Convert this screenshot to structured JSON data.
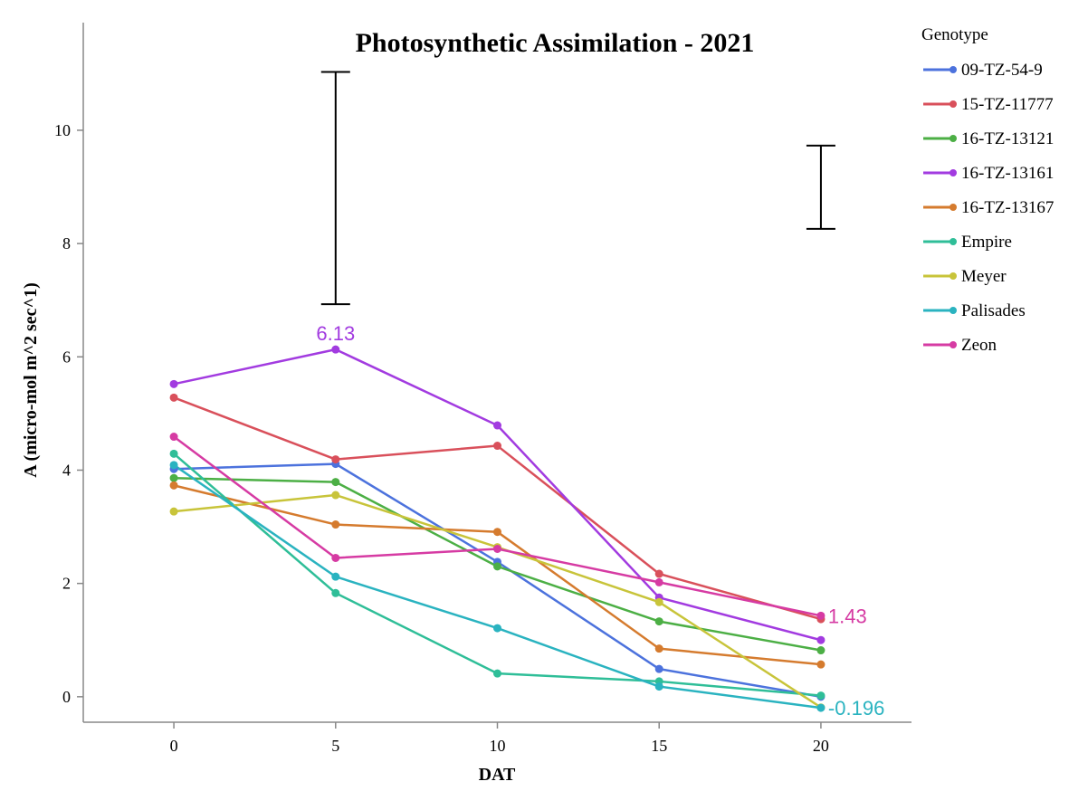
{
  "chart_data": {
    "type": "line",
    "title": "Photosynthetic Assimilation - 2021",
    "xlabel": "DAT",
    "ylabel": "A (micro-mol m^2 sec^1)",
    "x": [
      0,
      5,
      10,
      15,
      20
    ],
    "x_ticks": [
      "0",
      "5",
      "10",
      "15",
      "20"
    ],
    "y_ticks": [
      "0",
      "2",
      "4",
      "6",
      "8",
      "10"
    ],
    "xlim": [
      -2.8,
      22.8
    ],
    "ylim": [
      -0.45,
      11.9
    ],
    "grid": false,
    "legend": {
      "title": "Genotype",
      "position": "right"
    },
    "series": [
      {
        "name": "09-TZ-54-9",
        "color": "#4C72DD",
        "values": [
          4.02,
          4.11,
          2.38,
          0.49,
          0.0
        ]
      },
      {
        "name": "15-TZ-11777",
        "color": "#D9505B",
        "values": [
          5.28,
          4.19,
          4.43,
          2.17,
          1.37
        ]
      },
      {
        "name": "16-TZ-13121",
        "color": "#4CAF45",
        "values": [
          3.86,
          3.79,
          2.3,
          1.33,
          0.82
        ]
      },
      {
        "name": "16-TZ-13161",
        "color": "#A23BE0",
        "values": [
          5.52,
          6.13,
          4.79,
          1.75,
          1.0
        ]
      },
      {
        "name": "16-TZ-13167",
        "color": "#D57B2E",
        "values": [
          3.73,
          3.04,
          2.91,
          0.85,
          0.57
        ]
      },
      {
        "name": "Empire",
        "color": "#2FBE98",
        "values": [
          4.29,
          1.83,
          0.41,
          0.27,
          0.02
        ]
      },
      {
        "name": "Meyer",
        "color": "#C8C43A",
        "values": [
          3.27,
          3.56,
          2.64,
          1.67,
          -0.19
        ]
      },
      {
        "name": "Palisades",
        "color": "#2AB3C0",
        "values": [
          4.09,
          2.12,
          1.21,
          0.18,
          -0.196
        ]
      },
      {
        "name": "Zeon",
        "color": "#D63BA3",
        "values": [
          4.59,
          2.45,
          2.61,
          2.02,
          1.43
        ]
      }
    ],
    "data_labels": [
      {
        "series": "16-TZ-13161",
        "x": 5,
        "y": 6.13,
        "text": "6.13",
        "color": "#A23BE0"
      },
      {
        "series": "Zeon",
        "x": 20,
        "y": 1.43,
        "text": "1.43",
        "color": "#D63BA3"
      },
      {
        "series": "Palisades",
        "x": 20,
        "y": -0.196,
        "text": "-0.196",
        "color": "#2AB3C0"
      }
    ],
    "error_bars": [
      {
        "x": 5,
        "low": 6.93,
        "high": 11.03
      },
      {
        "x": 20,
        "low": 8.26,
        "high": 9.73
      }
    ]
  }
}
